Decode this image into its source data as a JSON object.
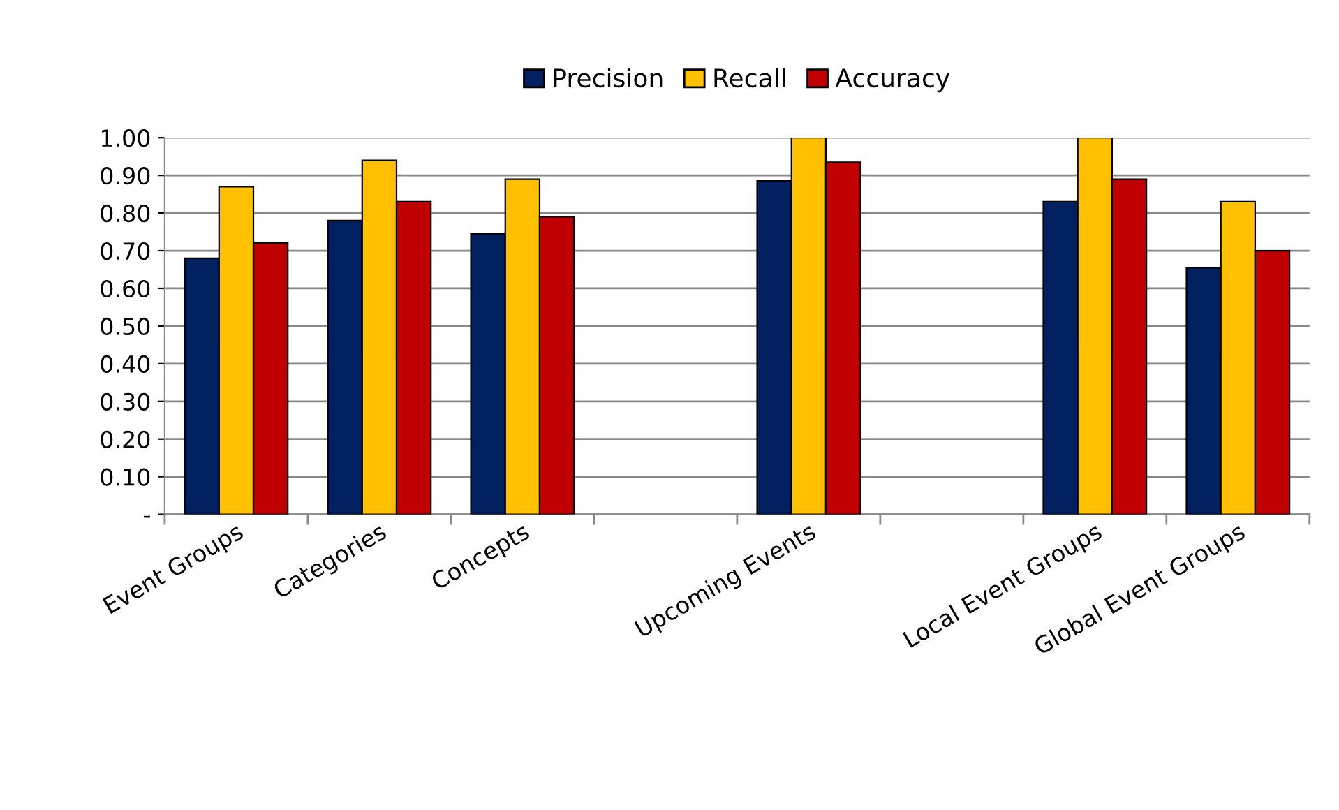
{
  "chart_data": {
    "type": "bar",
    "categories": [
      "Event Groups",
      "Categories",
      "Concepts",
      null,
      "Upcoming Events",
      null,
      "Local Event Groups",
      "Global Event Groups"
    ],
    "series": [
      {
        "name": "Precision",
        "color": "#002060",
        "values": [
          0.68,
          0.78,
          0.745,
          null,
          0.885,
          null,
          0.83,
          0.655
        ]
      },
      {
        "name": "Recall",
        "color": "#ffc000",
        "values": [
          0.87,
          0.94,
          0.89,
          null,
          1.0,
          null,
          1.0,
          0.83
        ]
      },
      {
        "name": "Accuracy",
        "color": "#c00000",
        "values": [
          0.72,
          0.83,
          0.79,
          null,
          0.935,
          null,
          0.89,
          0.7
        ]
      }
    ],
    "ylim": [
      0,
      1.0
    ],
    "yticks": [
      {
        "value": 0,
        "label": "-"
      },
      {
        "value": 0.1,
        "label": "0.10"
      },
      {
        "value": 0.2,
        "label": "0.20"
      },
      {
        "value": 0.3,
        "label": "0.30"
      },
      {
        "value": 0.4,
        "label": "0.40"
      },
      {
        "value": 0.5,
        "label": "0.50"
      },
      {
        "value": 0.6,
        "label": "0.60"
      },
      {
        "value": 0.7,
        "label": "0.70"
      },
      {
        "value": 0.8,
        "label": "0.80"
      },
      {
        "value": 0.9,
        "label": "0.90"
      },
      {
        "value": 1.0,
        "label": "1.00"
      }
    ],
    "grid": "y",
    "legend": "top"
  }
}
